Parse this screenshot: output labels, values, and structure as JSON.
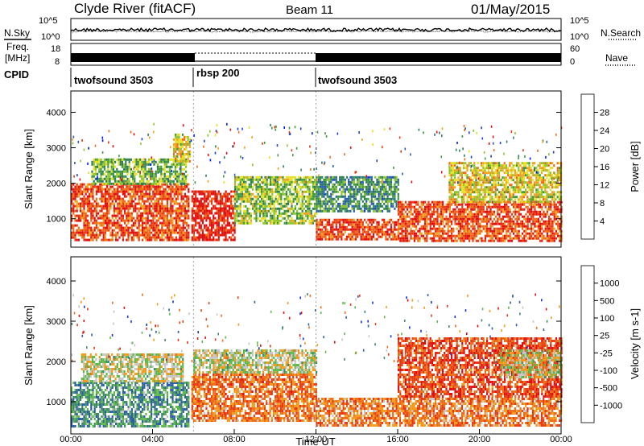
{
  "header": {
    "station": "Clyde River (fitACF)",
    "beam": "Beam 11",
    "date": "01/May/2015"
  },
  "noise_panel": {
    "left_label": "N.Sky",
    "right_label": "N.Search",
    "yticks_left": [
      "10^5",
      "10^0"
    ],
    "yticks_right": [
      "10^5",
      "10^0"
    ]
  },
  "freq_panel": {
    "label_line1": "Freq.",
    "label_line2": "[MHz]",
    "yticks": [
      "18",
      "8"
    ],
    "right_label": "Nave",
    "right_yticks": [
      "60",
      "0"
    ]
  },
  "cpid": {
    "label": "CPID",
    "segments": [
      {
        "name": "twofsound 3503",
        "start_h": 0,
        "end_h": 6
      },
      {
        "name": "rbsp 200",
        "start_h": 6,
        "end_h": 12
      },
      {
        "name": "twofsound 3503",
        "start_h": 12,
        "end_h": 24
      }
    ]
  },
  "chart_data": [
    {
      "type": "heatmap",
      "quantity": "Power",
      "ylabel": "Slant Range [km]",
      "yticks": [
        1000,
        2000,
        3000,
        4000
      ],
      "ylim": [
        200,
        4600
      ],
      "xlim_h": [
        0,
        24
      ],
      "colorbar": {
        "label": "Power [dB]",
        "ticks": [
          "28",
          "24",
          "20",
          "16",
          "12",
          "8",
          "4"
        ],
        "colors": [
          "#0018ff",
          "#1f3fcf",
          "#2a5fb0",
          "#2e7d57",
          "#3f9a3c",
          "#8ec42c",
          "#e7e023",
          "#f0a31d",
          "#ef6b15",
          "#e83a12",
          "#e01010"
        ]
      },
      "echo_bands": [
        {
          "t0": 0.0,
          "t1": 5.8,
          "r_low": 400,
          "r_high": 2000,
          "level": 0.85
        },
        {
          "t0": 1.0,
          "t1": 5.6,
          "r_low": 2000,
          "r_high": 2700,
          "level": 0.45
        },
        {
          "t0": 5.0,
          "t1": 5.8,
          "r_low": 2600,
          "r_high": 3400,
          "level": 0.6
        },
        {
          "t0": 5.9,
          "t1": 8.0,
          "r_low": 400,
          "r_high": 1800,
          "level": 0.95
        },
        {
          "t0": 8.0,
          "t1": 12.0,
          "r_low": 900,
          "r_high": 2200,
          "level": 0.5
        },
        {
          "t0": 12.0,
          "t1": 16.0,
          "r_low": 400,
          "r_high": 1000,
          "level": 0.85
        },
        {
          "t0": 12.0,
          "t1": 16.0,
          "r_low": 1200,
          "r_high": 2200,
          "level": 0.35
        },
        {
          "t0": 16.0,
          "t1": 24.0,
          "r_low": 400,
          "r_high": 1500,
          "level": 0.85
        },
        {
          "t0": 18.5,
          "t1": 24.0,
          "r_low": 1500,
          "r_high": 2600,
          "level": 0.6
        }
      ]
    },
    {
      "type": "heatmap",
      "quantity": "Velocity",
      "ylabel": "Slant Range [km]",
      "yticks": [
        1000,
        2000,
        3000,
        4000
      ],
      "ylim": [
        200,
        4600
      ],
      "xlim_h": [
        0,
        24
      ],
      "xticks": [
        "00:00",
        "04:00",
        "08:00",
        "12:00",
        "16:00",
        "20:00",
        "00:00"
      ],
      "xlabel": "Time UT",
      "colorbar": {
        "label": "Velocity [m s-1]",
        "ticks": [
          "1000",
          "500",
          "100",
          "25",
          "-25",
          "-100",
          "-500",
          "-1000"
        ],
        "colors": [
          "#1636c8",
          "#2c5fa8",
          "#3e8a6a",
          "#5fb84a",
          "#c6c6c6",
          "#f39a1a",
          "#ef6b15",
          "#e83a12",
          "#e01010"
        ]
      },
      "echo_bands": [
        {
          "t0": 0.0,
          "t1": 5.8,
          "r_low": 400,
          "r_high": 1500,
          "level": 0.3
        },
        {
          "t0": 0.5,
          "t1": 5.5,
          "r_low": 1500,
          "r_high": 2200,
          "level": 0.5
        },
        {
          "t0": 5.9,
          "t1": 12.0,
          "r_low": 500,
          "r_high": 1700,
          "level": 0.72
        },
        {
          "t0": 6.0,
          "t1": 12.0,
          "r_low": 1700,
          "r_high": 2300,
          "level": 0.5
        },
        {
          "t0": 12.0,
          "t1": 24.0,
          "r_low": 400,
          "r_high": 1100,
          "level": 0.7
        },
        {
          "t0": 16.0,
          "t1": 24.0,
          "r_low": 1100,
          "r_high": 2600,
          "level": 0.82
        },
        {
          "t0": 21.0,
          "t1": 24.0,
          "r_low": 1600,
          "r_high": 2300,
          "level": 0.5
        }
      ]
    }
  ]
}
